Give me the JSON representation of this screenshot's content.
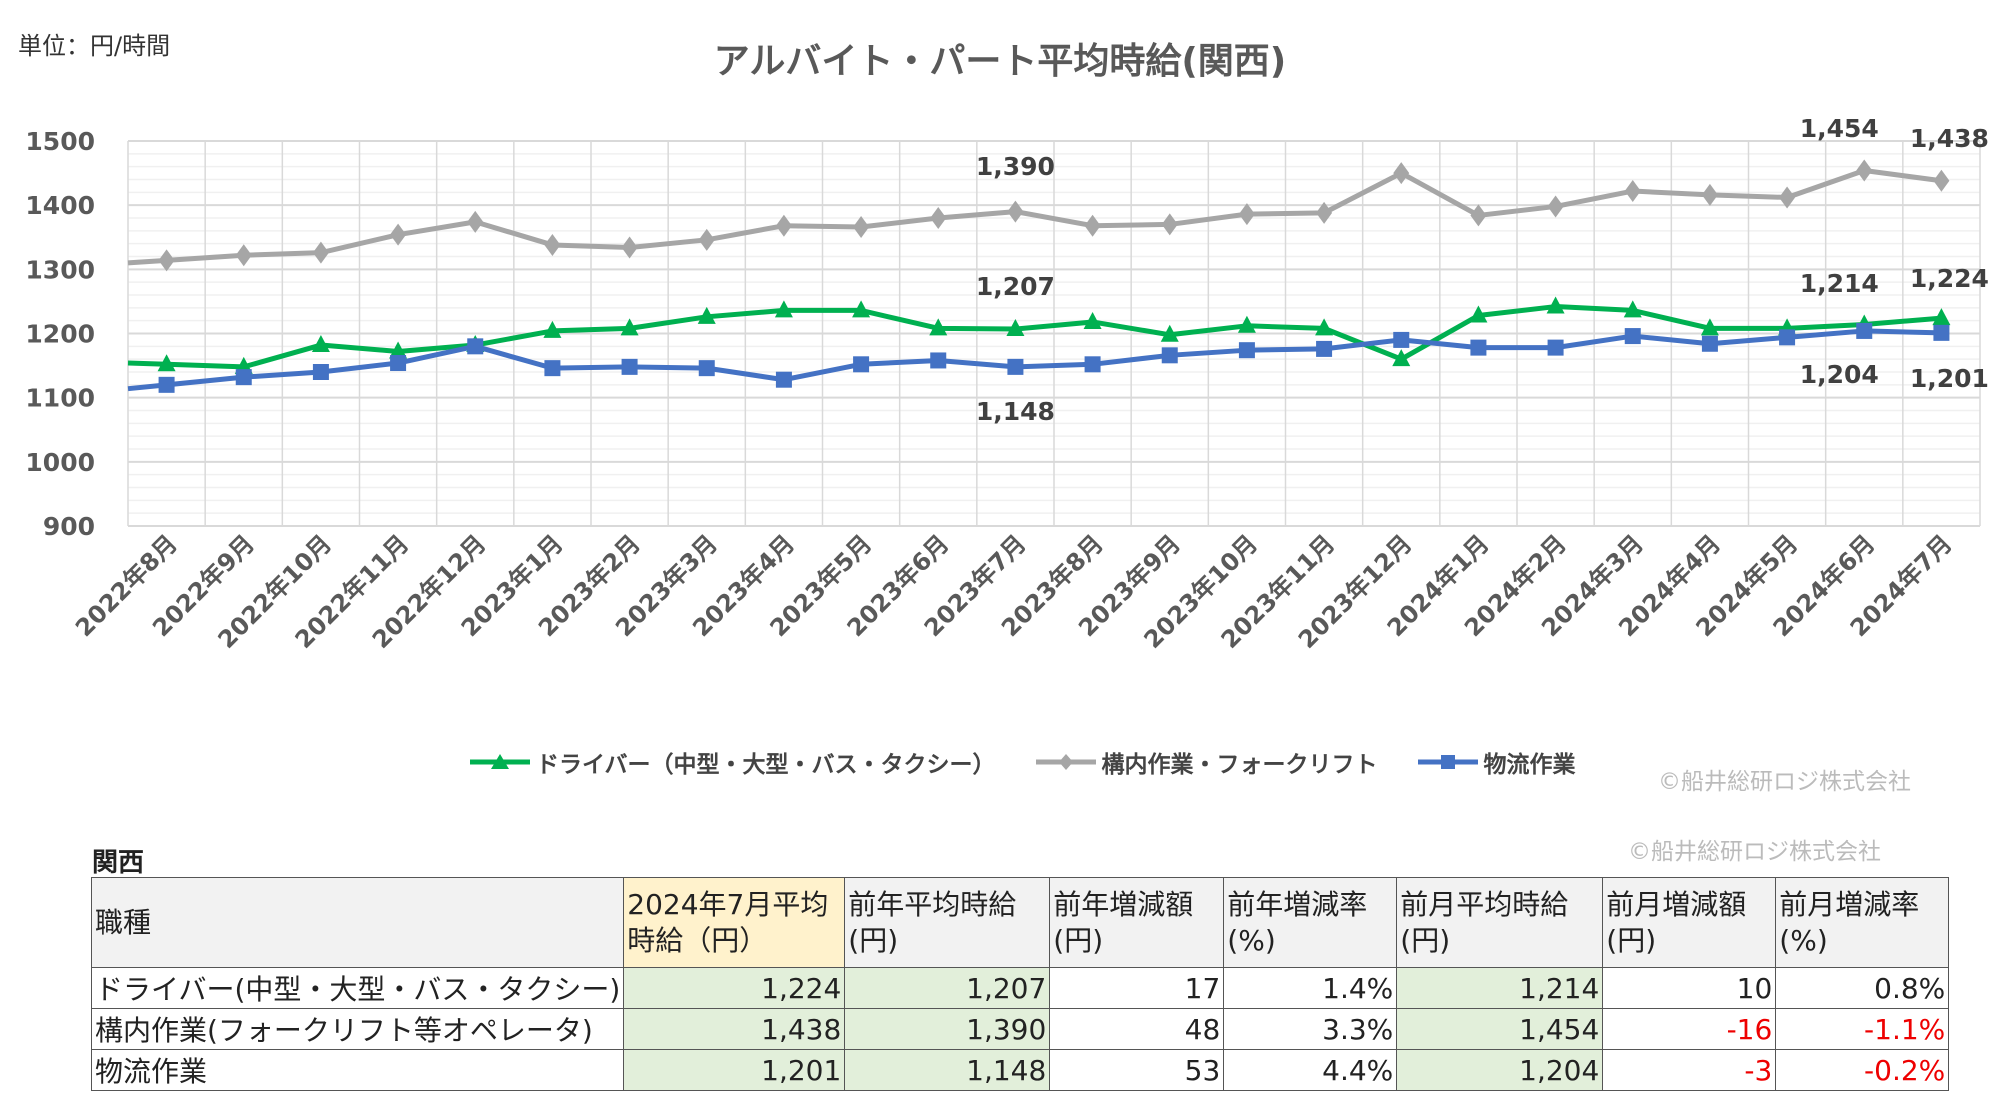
{
  "unit_label": "単位：円/時間",
  "chart_data": {
    "type": "line",
    "title": "アルバイト・パート平均時給(関西)",
    "ylim": [
      900,
      1500
    ],
    "yticks": [
      900,
      1000,
      1100,
      1200,
      1300,
      1400,
      1500
    ],
    "grid": true,
    "legend_placement": "bottom",
    "categories": [
      "2022年8月",
      "2022年9月",
      "2022年10月",
      "2022年11月",
      "2022年12月",
      "2023年1月",
      "2023年2月",
      "2023年3月",
      "2023年4月",
      "2023年5月",
      "2023年6月",
      "2023年7月",
      "2023年8月",
      "2023年9月",
      "2023年10月",
      "2023年11月",
      "2023年12月",
      "2024年1月",
      "2024年2月",
      "2024年3月",
      "2024年4月",
      "2024年5月",
      "2024年6月",
      "2024年7月"
    ],
    "series": [
      {
        "name": "ドライバー（中型・大型・バス・タクシー）",
        "color": "#00b050",
        "marker": "triangle",
        "values": [
          1152,
          1148,
          1182,
          1172,
          1182,
          1204,
          1208,
          1226,
          1236,
          1236,
          1208,
          1207,
          1218,
          1198,
          1212,
          1208,
          1160,
          1228,
          1242,
          1236,
          1208,
          1208,
          1214,
          1224
        ]
      },
      {
        "name": "構内作業・フォークリフト",
        "color": "#a6a6a6",
        "marker": "diamond",
        "values": [
          1314,
          1322,
          1326,
          1354,
          1374,
          1338,
          1334,
          1346,
          1368,
          1366,
          1380,
          1390,
          1368,
          1370,
          1386,
          1388,
          1450,
          1384,
          1398,
          1422,
          1416,
          1412,
          1454,
          1438
        ]
      },
      {
        "name": "物流作業",
        "color": "#4472c4",
        "marker": "square",
        "values": [
          1120,
          1132,
          1140,
          1154,
          1180,
          1146,
          1148,
          1146,
          1128,
          1152,
          1158,
          1148,
          1152,
          1166,
          1174,
          1176,
          1190,
          1178,
          1178,
          1196,
          1184,
          1194,
          1204,
          1201
        ]
      }
    ],
    "data_labels": [
      {
        "series": 1,
        "index": 11,
        "text": "1,390"
      },
      {
        "series": 0,
        "index": 11,
        "text": "1,207"
      },
      {
        "series": 2,
        "index": 11,
        "text": "1,148"
      },
      {
        "series": 1,
        "index": 22,
        "text": "1,454"
      },
      {
        "series": 1,
        "index": 23,
        "text": "1,438"
      },
      {
        "series": 0,
        "index": 22,
        "text": "1,214"
      },
      {
        "series": 0,
        "index": 23,
        "text": "1,224"
      },
      {
        "series": 2,
        "index": 22,
        "text": "1,204"
      },
      {
        "series": 2,
        "index": 23,
        "text": "1,201"
      }
    ]
  },
  "copyright": "©船井総研ロジ株式会社",
  "table": {
    "region": "関西",
    "headers": [
      "職種",
      "2024年7月平均時給（円）",
      "前年平均時給(円)",
      "前年増減額(円)",
      "前年増減率(%)",
      "前月平均時給(円)",
      "前月増減額(円)",
      "前月増減率(%)"
    ],
    "rows": [
      [
        "ドライバー(中型・大型・バス・タクシー)",
        "1,224",
        "1,207",
        "17",
        "1.4%",
        "1,214",
        "10",
        "0.8%"
      ],
      [
        "構内作業(フォークリフト等オペレータ)",
        "1,438",
        "1,390",
        "48",
        "3.3%",
        "1,454",
        "-16",
        "-1.1%"
      ],
      [
        "物流作業",
        "1,201",
        "1,148",
        "53",
        "4.4%",
        "1,204",
        "-3",
        "-0.2%"
      ]
    ]
  }
}
